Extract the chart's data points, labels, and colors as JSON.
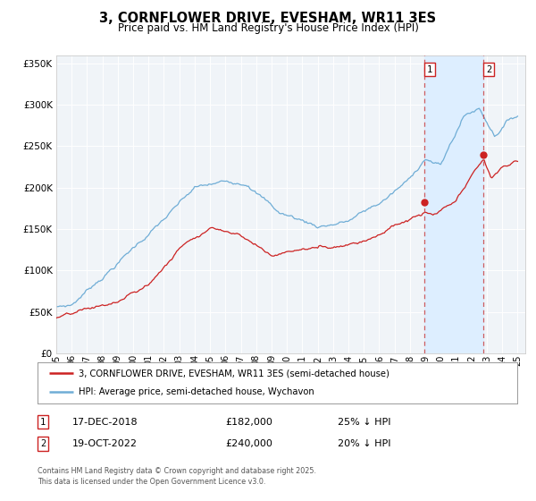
{
  "title": "3, CORNFLOWER DRIVE, EVESHAM, WR11 3ES",
  "subtitle": "Price paid vs. HM Land Registry's House Price Index (HPI)",
  "ylim_max": 360000,
  "xlim_start": 1995.0,
  "xlim_end": 2025.5,
  "hpi_color": "#6fadd6",
  "price_color": "#cc2222",
  "marker1_year": 2018.96,
  "marker1_price": 182000,
  "marker1_label": "17-DEC-2018",
  "marker1_amount": "£182,000",
  "marker1_pct": "25% ↓ HPI",
  "marker2_year": 2022.79,
  "marker2_price": 240000,
  "marker2_label": "19-OCT-2022",
  "marker2_amount": "£240,000",
  "marker2_pct": "20% ↓ HPI",
  "legend_line1": "3, CORNFLOWER DRIVE, EVESHAM, WR11 3ES (semi-detached house)",
  "legend_line2": "HPI: Average price, semi-detached house, Wychavon",
  "footnote1": "Contains HM Land Registry data © Crown copyright and database right 2025.",
  "footnote2": "This data is licensed under the Open Government Licence v3.0.",
  "background_color": "#ffffff",
  "plot_bg_color": "#f0f4f8",
  "grid_color": "#ffffff",
  "vline_color": "#cc4444",
  "span_color": "#ddeeff"
}
